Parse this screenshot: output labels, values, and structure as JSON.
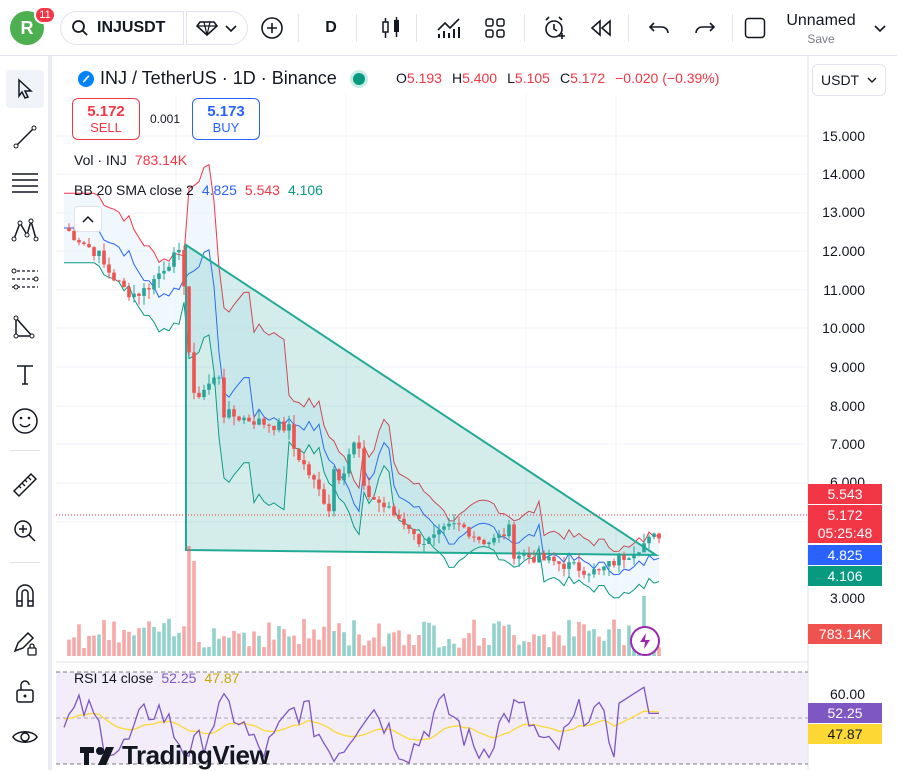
{
  "topbar": {
    "avatar_letter": "R",
    "notifications": "11",
    "symbol": "INJUSDT",
    "interval": "D",
    "layout_name": "Unnamed",
    "save_label": "Save"
  },
  "legend": {
    "title": "INJ / TetherUS · 1D · Binance",
    "open_label": "O",
    "open": "5.193",
    "high_label": "H",
    "high": "5.400",
    "low_label": "L",
    "low": "5.105",
    "close_label": "C",
    "close": "5.172",
    "change": "−0.020 (−0.39%)"
  },
  "trade": {
    "sell_price": "5.172",
    "sell_label": "SELL",
    "spread": "0.001",
    "buy_price": "5.173",
    "buy_label": "BUY"
  },
  "indicators": {
    "vol_label": "Vol · INJ",
    "vol_value": "783.14K",
    "bb_label": "BB 20 SMA close 2",
    "bb_mid": "4.825",
    "bb_upper": "5.543",
    "bb_lower": "4.106",
    "rsi_label": "RSI 14 close",
    "rsi_value": "52.25",
    "rsi_ma": "47.87"
  },
  "currency": "USDT",
  "price_axis": [
    "15.000",
    "14.000",
    "13.000",
    "12.000",
    "11.000",
    "10.000",
    "9.000",
    "8.000",
    "7.000",
    "6.000",
    "3.000"
  ],
  "price_tags": {
    "upper": "5.543",
    "last": "5.172",
    "countdown": "05:25:48",
    "mid": "4.825",
    "lower": "4.106",
    "volume": "783.14K"
  },
  "rsi_axis": [
    "60.00"
  ],
  "rsi_tags": {
    "rsi": "52.25",
    "ma": "47.87"
  },
  "watermark": "TradingView",
  "colors": {
    "up": "#26a69a",
    "down": "#ef5350",
    "accent": "#2962ff",
    "rsi": "#7e57c2",
    "rsi_ma": "#fdd835"
  }
}
